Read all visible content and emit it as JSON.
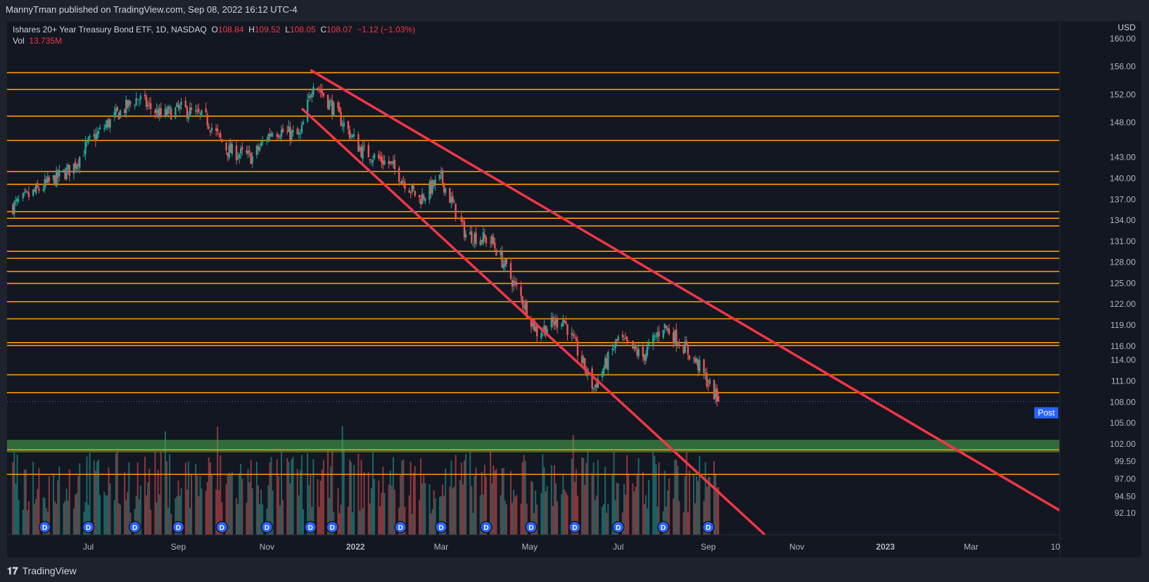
{
  "header": {
    "published": "MannyTman published on TradingView.com, Sep 08, 2022 16:12 UTC-4"
  },
  "legend": {
    "symbol": "Ishares 20+ Year Treasury Bond ETF, 1D, NASDAQ",
    "o_label": "O",
    "o": "108.84",
    "h_label": "H",
    "h": "109.52",
    "l_label": "L",
    "l": "108.05",
    "c_label": "C",
    "c": "108.07",
    "change": "−1.12 (−1.03%)",
    "vol_label": "Vol",
    "vol": "13.735M"
  },
  "footer": {
    "brand": "TradingView"
  },
  "chart_data": {
    "type": "candlestick",
    "title": "Ishares 20+ Year Treasury Bond ETF, 1D, NASDAQ",
    "currency": "USD",
    "ylim": [
      89.0,
      162.5
    ],
    "y_ticks": [
      "160.00",
      "156.00",
      "152.00",
      "148.00",
      "143.00",
      "140.00",
      "137.00",
      "134.00",
      "131.00",
      "128.00",
      "125.00",
      "122.00",
      "119.00",
      "116.00",
      "114.00",
      "111.00",
      "108.00",
      "105.00",
      "102.00",
      "99.50",
      "97.00",
      "94.50",
      "92.10"
    ],
    "x_ticks": [
      {
        "label": "Jul",
        "bold": false
      },
      {
        "label": "Sep",
        "bold": false
      },
      {
        "label": "Nov",
        "bold": false
      },
      {
        "label": "2022",
        "bold": true
      },
      {
        "label": "Mar",
        "bold": false
      },
      {
        "label": "May",
        "bold": false
      },
      {
        "label": "Jul",
        "bold": false
      },
      {
        "label": "Sep",
        "bold": false
      },
      {
        "label": "Nov",
        "bold": false
      },
      {
        "label": "2023",
        "bold": true
      },
      {
        "label": "Mar",
        "bold": false
      },
      {
        "label": "10",
        "bold": false
      }
    ],
    "horizontal_levels": [
      155.12,
      152.71,
      148.9,
      145.43,
      140.98,
      139.15,
      135.25,
      134.29,
      133.19,
      129.57,
      128.57,
      126.69,
      124.98,
      122.36,
      119.91,
      116.51,
      116.09,
      111.9,
      109.34,
      101.17,
      97.66
    ],
    "level_color": "#ff9800",
    "support_zone": [
      100.8,
      102.6
    ],
    "support_color": "#4caf50",
    "trendlines": [
      {
        "name": "upper-channel",
        "from": [
          "2021-12-01",
          155.5
        ],
        "to": [
          "2023-05-01",
          92.5
        ]
      },
      {
        "name": "lower-channel",
        "from": [
          "2021-11-25",
          150.0
        ],
        "to": [
          "2022-10-10",
          89.0
        ]
      }
    ],
    "trend_color": "#f23645",
    "last_price": "108.07",
    "post_label": "Post",
    "post_price": "107.97",
    "up_color": "#26a69a",
    "down_color": "#ef5350",
    "price_path": [
      [
        "2021-05-10",
        136.0
      ],
      [
        "2021-06-01",
        139.0
      ],
      [
        "2021-06-20",
        141.5
      ],
      [
        "2021-07-01",
        145.0
      ],
      [
        "2021-07-20",
        149.0
      ],
      [
        "2021-08-04",
        151.5
      ],
      [
        "2021-08-20",
        149.0
      ],
      [
        "2021-09-03",
        150.0
      ],
      [
        "2021-09-20",
        148.5
      ],
      [
        "2021-10-05",
        144.0
      ],
      [
        "2021-10-22",
        143.0
      ],
      [
        "2021-11-05",
        147.0
      ],
      [
        "2021-11-24",
        146.0
      ],
      [
        "2021-12-03",
        154.0
      ],
      [
        "2021-12-20",
        149.0
      ],
      [
        "2022-01-05",
        144.0
      ],
      [
        "2022-01-25",
        142.0
      ],
      [
        "2022-02-14",
        137.0
      ],
      [
        "2022-03-01",
        140.0
      ],
      [
        "2022-03-18",
        132.0
      ],
      [
        "2022-04-05",
        131.0
      ],
      [
        "2022-04-25",
        123.0
      ],
      [
        "2022-05-06",
        118.0
      ],
      [
        "2022-05-24",
        120.0
      ],
      [
        "2022-06-14",
        110.0
      ],
      [
        "2022-07-01",
        117.0
      ],
      [
        "2022-07-18",
        114.5
      ],
      [
        "2022-08-01",
        119.0
      ],
      [
        "2022-08-15",
        116.0
      ],
      [
        "2022-08-26",
        113.0
      ],
      [
        "2022-09-08",
        108.07
      ]
    ],
    "dividend_marker": "D",
    "dividend_dates": [
      "2021-06-01",
      "2021-07-01",
      "2021-08-02",
      "2021-09-01",
      "2021-10-01",
      "2021-11-01",
      "2021-12-01",
      "2021-12-16",
      "2022-02-01",
      "2022-03-01",
      "2022-04-01",
      "2022-05-02",
      "2022-06-01",
      "2022-07-01",
      "2022-08-01",
      "2022-09-01"
    ]
  }
}
